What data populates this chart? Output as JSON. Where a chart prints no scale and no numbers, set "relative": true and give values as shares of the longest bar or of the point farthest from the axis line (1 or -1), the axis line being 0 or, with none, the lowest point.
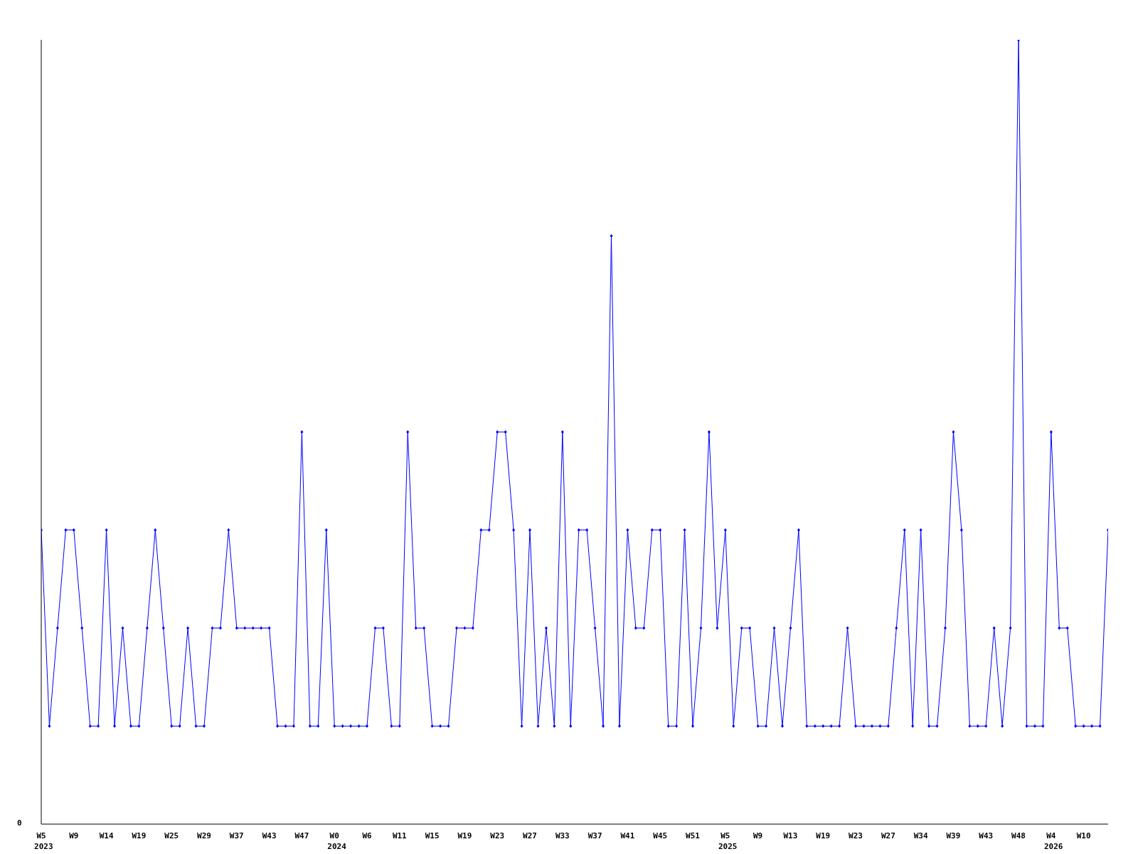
{
  "chart_data": {
    "type": "line",
    "relative": true,
    "categories": [
      "W5\n2023",
      null,
      null,
      null,
      "W9",
      null,
      null,
      null,
      "W14",
      null,
      null,
      null,
      "W19",
      null,
      null,
      null,
      "W25",
      null,
      null,
      null,
      "W29",
      null,
      null,
      null,
      "W37",
      null,
      null,
      null,
      "W43",
      null,
      null,
      null,
      "W47",
      null,
      null,
      null,
      "W0\n2024",
      null,
      null,
      null,
      "W6",
      null,
      null,
      null,
      "W11",
      null,
      null,
      null,
      "W15",
      null,
      null,
      null,
      "W19",
      null,
      null,
      null,
      "W23",
      null,
      null,
      null,
      "W27",
      null,
      null,
      null,
      "W33",
      null,
      null,
      null,
      "W37",
      null,
      null,
      null,
      "W41",
      null,
      null,
      null,
      "W45",
      null,
      null,
      null,
      "W51",
      null,
      null,
      null,
      "W5\n2025",
      null,
      null,
      null,
      "W9",
      null,
      null,
      null,
      "W13",
      null,
      null,
      null,
      "W19",
      null,
      null,
      null,
      "W23",
      null,
      null,
      null,
      "W27",
      null,
      null,
      null,
      "W34",
      null,
      null,
      null,
      "W39",
      null,
      null,
      null,
      "W43",
      null,
      null,
      null,
      "W48",
      null,
      null,
      null,
      "W4\n2026",
      null,
      null,
      null,
      "W10",
      null,
      null,
      null
    ],
    "series": [
      {
        "color": "#0000ff",
        "values": [
          0.375,
          0.125,
          0.25,
          0.375,
          0.375,
          0.25,
          0.125,
          0.125,
          0.375,
          0.125,
          0.25,
          0.125,
          0.125,
          0.25,
          0.375,
          0.25,
          0.125,
          0.125,
          0.25,
          0.125,
          0.125,
          0.25,
          0.25,
          0.375,
          0.25,
          0.25,
          0.25,
          0.25,
          0.25,
          0.125,
          0.125,
          0.125,
          0.5,
          0.125,
          0.125,
          0.375,
          0.125,
          0.125,
          0.125,
          0.125,
          0.125,
          0.25,
          0.25,
          0.125,
          0.125,
          0.5,
          0.25,
          0.25,
          0.125,
          0.125,
          0.125,
          0.25,
          0.25,
          0.25,
          0.375,
          0.375,
          0.5,
          0.5,
          0.375,
          0.125,
          0.375,
          0.125,
          0.25,
          0.125,
          0.5,
          0.125,
          0.375,
          0.375,
          0.25,
          0.125,
          0.75,
          0.125,
          0.375,
          0.25,
          0.25,
          0.375,
          0.375,
          0.125,
          0.125,
          0.375,
          0.125,
          0.25,
          0.5,
          0.25,
          0.375,
          0.125,
          0.25,
          0.25,
          0.125,
          0.125,
          0.25,
          0.125,
          0.25,
          0.375,
          0.125,
          0.125,
          0.125,
          0.125,
          0.125,
          0.25,
          0.125,
          0.125,
          0.125,
          0.125,
          0.125,
          0.25,
          0.375,
          0.125,
          0.375,
          0.125,
          0.125,
          0.25,
          0.5,
          0.375,
          0.125,
          0.125,
          0.125,
          0.25,
          0.125,
          0.25,
          1,
          0.125,
          0.125,
          0.125,
          0.5,
          0.25,
          0.25,
          0.125,
          0.125,
          0.125,
          0.125,
          0.375
        ]
      }
    ],
    "annotations": [
      "0"
    ],
    "marker": "diamond",
    "line_style": "solid",
    "grid": false,
    "legend": false
  }
}
